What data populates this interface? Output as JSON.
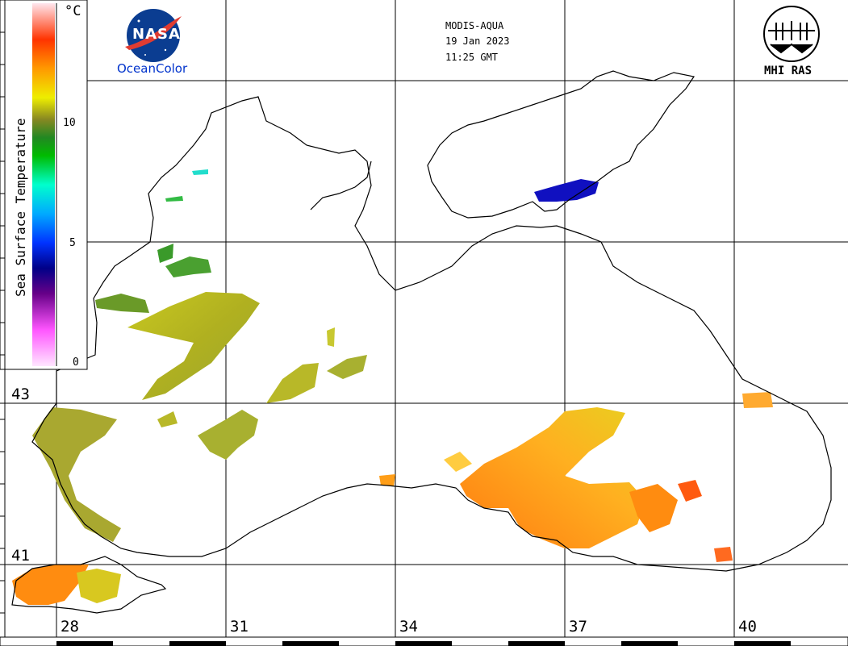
{
  "header": {
    "sensor": "MODIS-AQUA",
    "date": "19 Jan 2023",
    "time": "11:25 GMT"
  },
  "logos": {
    "left_badge": "NASA",
    "left_caption": "OceanColor",
    "right_caption": "MHI RAS"
  },
  "colorbar": {
    "title": "Sea Surface Temperature",
    "unit": "°C",
    "ticks": [
      "0",
      "5",
      "10"
    ],
    "range": [
      0,
      15
    ]
  },
  "latitude_labels": [
    "43",
    "41"
  ],
  "longitude_labels": [
    "28",
    "31",
    "34",
    "37",
    "40"
  ],
  "colors": {
    "coastline": "#000000",
    "background": "#ffffff",
    "grid": "#000000",
    "nasa_blue": "#0b3d91",
    "nasa_red": "#e03c31",
    "oceancolor_text": "#0033cc"
  }
}
